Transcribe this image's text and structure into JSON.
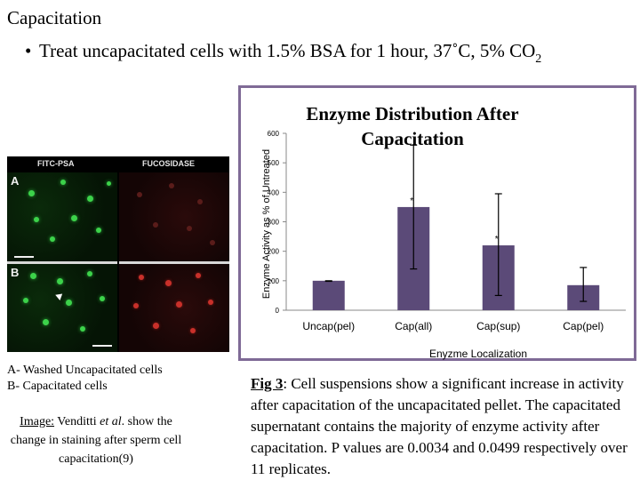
{
  "slide": {
    "title": "Capacitation",
    "bullet_main": "Treat uncapacitated cells with 1.5% BSA for 1 hour, 37˚C, 5% CO",
    "bullet_subscript": "2"
  },
  "micrograph": {
    "col_left": "FITC-PSA",
    "col_right": "FUCOSIDASE",
    "panel_a": "A",
    "panel_b": "B"
  },
  "caption_ab": {
    "line1": "A- Washed Uncapacitated cells",
    "line2": "B- Capacitated cells"
  },
  "image_credit": {
    "label": "Image:",
    "author": "Venditti",
    "etal": "et al",
    "rest": ". show the change in staining after sperm cell capacitation(9)"
  },
  "chart_data": {
    "type": "bar",
    "title_line1": "Enzyme Distribution After",
    "title_line2": "Capacitation",
    "categories": [
      "Uncap(pel)",
      "Cap(all)",
      "Cap(sup)",
      "Cap(pel)"
    ],
    "values": [
      100,
      350,
      220,
      85
    ],
    "error_high": [
      100,
      560,
      395,
      145
    ],
    "error_low": [
      98,
      140,
      50,
      30
    ],
    "annotations": [
      "",
      "*",
      "*",
      ""
    ],
    "xlabel": "Enyzme Localization",
    "ylabel": "Enzyme Activity as % of Untreated",
    "ylim": [
      0,
      600
    ],
    "yticks": [
      0,
      100,
      200,
      300,
      400,
      500,
      600
    ],
    "bar_color": "#5b4a78",
    "frame_color": "#7f6a96",
    "grid": false
  },
  "fig_caption": {
    "label": "Fig 3",
    "text": ":  Cell suspensions show a significant increase in activity after capacitation of the uncapacitated pellet.  The capacitated supernatant contains the majority of enzyme activity after capacitation. P values  are 0.0034 and 0.0499 respectively over 11 replicates."
  }
}
